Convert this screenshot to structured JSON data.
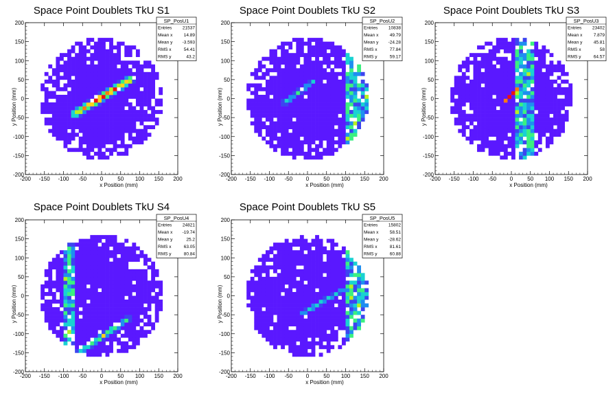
{
  "chart_data": [
    {
      "type": "heatmap",
      "title": "Space Point Doublets TkU S1",
      "xlabel": "x Position (mm)",
      "ylabel": "y Position (mm)",
      "xlim": [
        -200,
        200
      ],
      "ylim": [
        -200,
        200
      ],
      "xticks": [
        "-200",
        "-150",
        "-100",
        "-50",
        "0",
        "50",
        "100",
        "150",
        "200"
      ],
      "yticks": [
        "-200",
        "-150",
        "-100",
        "-50",
        "0",
        "50",
        "100",
        "150",
        "200"
      ],
      "stats": {
        "name": "SP_PosU1",
        "rows": [
          {
            "label": "Entries",
            "value": "21537"
          },
          {
            "label": "Mean x",
            "value": "14.89"
          },
          {
            "label": "Mean y",
            "value": "-3.593"
          },
          {
            "label": "RMS x",
            "value": "54.41"
          },
          {
            "label": "RMS y",
            "value": "43.2"
          }
        ]
      },
      "features": {
        "disc_radius": 160,
        "streak": {
          "x1": -70,
          "y1": -40,
          "x2": 75,
          "y2": 50,
          "peak": 1.0,
          "width": 14
        },
        "vertical_band_x": null
      }
    },
    {
      "type": "heatmap",
      "title": "Space Point Doublets TkU S2",
      "xlabel": "x Position (mm)",
      "ylabel": "y Position (mm)",
      "xlim": [
        -200,
        200
      ],
      "ylim": [
        -200,
        200
      ],
      "xticks": [
        "-200",
        "-150",
        "-100",
        "-50",
        "0",
        "50",
        "100",
        "150",
        "200"
      ],
      "yticks": [
        "-200",
        "-150",
        "-100",
        "-50",
        "0",
        "50",
        "100",
        "150",
        "200"
      ],
      "stats": {
        "name": "SP_PosU2",
        "rows": [
          {
            "label": "Entries",
            "value": "10838"
          },
          {
            "label": "Mean x",
            "value": "49.79"
          },
          {
            "label": "Mean y",
            "value": "-24.28"
          },
          {
            "label": "RMS x",
            "value": "77.84"
          },
          {
            "label": "RMS y",
            "value": "59.17"
          }
        ]
      },
      "features": {
        "disc_radius": 160,
        "streak": {
          "x1": -60,
          "y1": -10,
          "x2": 20,
          "y2": 50,
          "peak": 0.55,
          "width": 8
        },
        "vertical_band_x": [
          100,
          165
        ]
      }
    },
    {
      "type": "heatmap",
      "title": "Space Point Doublets TkU S3",
      "xlabel": "x Position (mm)",
      "ylabel": "y Position (mm)",
      "xlim": [
        -200,
        200
      ],
      "ylim": [
        -200,
        200
      ],
      "xticks": [
        "-200",
        "-150",
        "-100",
        "-50",
        "0",
        "50",
        "100",
        "150",
        "200"
      ],
      "yticks": [
        "-200",
        "-150",
        "-100",
        "-50",
        "0",
        "50",
        "100",
        "150",
        "200"
      ],
      "stats": {
        "name": "SP_PosU3",
        "rows": [
          {
            "label": "Entries",
            "value": "23402"
          },
          {
            "label": "Mean x",
            "value": "7.879"
          },
          {
            "label": "Mean y",
            "value": "45.81"
          },
          {
            "label": "RMS x",
            "value": "58"
          },
          {
            "label": "RMS y",
            "value": "64.57"
          }
        ]
      },
      "features": {
        "disc_radius": 160,
        "streak": {
          "x1": -20,
          "y1": -10,
          "x2": 20,
          "y2": 30,
          "peak": 1.0,
          "width": 6
        },
        "vertical_band_x": [
          15,
          60
        ]
      }
    },
    {
      "type": "heatmap",
      "title": "Space Point Doublets TkU S4",
      "xlabel": "x Position (mm)",
      "ylabel": "y Position (mm)",
      "xlim": [
        -200,
        200
      ],
      "ylim": [
        -200,
        200
      ],
      "xticks": [
        "-200",
        "-150",
        "-100",
        "-50",
        "0",
        "50",
        "100",
        "150",
        "200"
      ],
      "yticks": [
        "-200",
        "-150",
        "-100",
        "-50",
        "0",
        "50",
        "100",
        "150",
        "200"
      ],
      "stats": {
        "name": "SP_PosU4",
        "rows": [
          {
            "label": "Entries",
            "value": "24821"
          },
          {
            "label": "Mean x",
            "value": "-19.74"
          },
          {
            "label": "Mean y",
            "value": "25.2"
          },
          {
            "label": "RMS x",
            "value": "63.05"
          },
          {
            "label": "RMS y",
            "value": "80.84"
          }
        ]
      },
      "features": {
        "disc_radius": 160,
        "streak": {
          "x1": -60,
          "y1": -150,
          "x2": 70,
          "y2": -60,
          "peak": 0.6,
          "width": 10
        },
        "vertical_band_x": [
          -100,
          -70
        ]
      }
    },
    {
      "type": "heatmap",
      "title": "Space Point Doublets TkU S5",
      "xlabel": "x Position (mm)",
      "ylabel": "y Position (mm)",
      "xlim": [
        -200,
        200
      ],
      "ylim": [
        -200,
        200
      ],
      "xticks": [
        "-200",
        "-150",
        "-100",
        "-50",
        "0",
        "50",
        "100",
        "150",
        "200"
      ],
      "yticks": [
        "-200",
        "-150",
        "-100",
        "-50",
        "0",
        "50",
        "100",
        "150",
        "200"
      ],
      "stats": {
        "name": "SP_PosU5",
        "rows": [
          {
            "label": "Entries",
            "value": "15802"
          },
          {
            "label": "Mean x",
            "value": "58.51"
          },
          {
            "label": "Mean y",
            "value": "-28.62"
          },
          {
            "label": "RMS x",
            "value": "81.61"
          },
          {
            "label": "RMS y",
            "value": "60.88"
          }
        ]
      },
      "features": {
        "disc_radius": 160,
        "streak": {
          "x1": -20,
          "y1": -50,
          "x2": 100,
          "y2": 20,
          "peak": 0.45,
          "width": 8
        },
        "vertical_band_x": [
          100,
          165
        ]
      }
    }
  ],
  "colors": {
    "background": "#ffffff",
    "frame": "#000000",
    "palette": [
      "#5a18ff",
      "#3d44f0",
      "#1f8ef0",
      "#19d2d2",
      "#3bf080",
      "#b8f020",
      "#ffd21a",
      "#ff7a10",
      "#ee1010"
    ]
  }
}
